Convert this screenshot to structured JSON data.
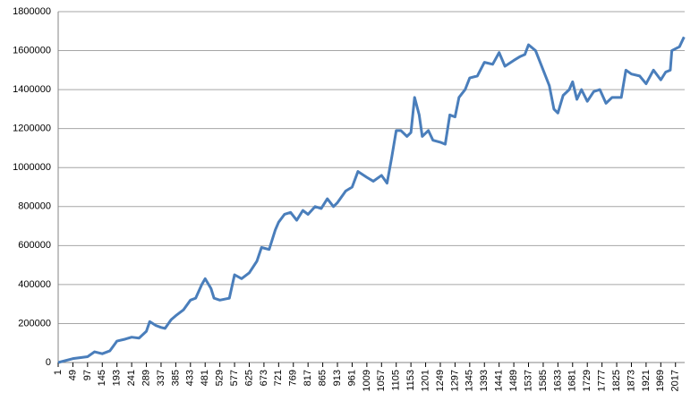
{
  "chart_data": {
    "type": "line",
    "x": [
      1,
      49,
      97,
      120,
      145,
      170,
      193,
      220,
      241,
      265,
      289,
      300,
      320,
      337,
      350,
      370,
      385,
      410,
      433,
      450,
      470,
      481,
      500,
      510,
      529,
      560,
      577,
      600,
      625,
      650,
      665,
      690,
      710,
      721,
      740,
      760,
      780,
      800,
      817,
      840,
      860,
      880,
      900,
      913,
      940,
      961,
      980,
      1009,
      1030,
      1057,
      1075,
      1090,
      1105,
      1120,
      1140,
      1153,
      1165,
      1180,
      1190,
      1210,
      1225,
      1249,
      1265,
      1280,
      1297,
      1310,
      1330,
      1345,
      1370,
      1393,
      1420,
      1441,
      1460,
      1489,
      1510,
      1525,
      1537,
      1560,
      1585,
      1605,
      1620,
      1633,
      1650,
      1670,
      1681,
      1695,
      1710,
      1729,
      1750,
      1770,
      1790,
      1810,
      1840,
      1855,
      1873,
      1900,
      1921,
      1945,
      1969,
      1985,
      2000,
      2005,
      2030,
      2045
    ],
    "series": [
      {
        "color": "#4a7ebb",
        "values": [
          0,
          20000,
          30000,
          55000,
          45000,
          60000,
          110000,
          120000,
          130000,
          125000,
          160000,
          210000,
          190000,
          180000,
          175000,
          220000,
          240000,
          270000,
          320000,
          330000,
          400000,
          430000,
          380000,
          330000,
          320000,
          330000,
          450000,
          430000,
          460000,
          520000,
          590000,
          580000,
          680000,
          720000,
          760000,
          770000,
          730000,
          780000,
          760000,
          800000,
          790000,
          840000,
          800000,
          820000,
          880000,
          900000,
          980000,
          950000,
          930000,
          960000,
          920000,
          1050000,
          1190000,
          1190000,
          1160000,
          1180000,
          1360000,
          1270000,
          1160000,
          1190000,
          1140000,
          1130000,
          1120000,
          1270000,
          1260000,
          1360000,
          1400000,
          1460000,
          1470000,
          1540000,
          1530000,
          1590000,
          1520000,
          1550000,
          1570000,
          1580000,
          1630000,
          1600000,
          1500000,
          1420000,
          1300000,
          1280000,
          1370000,
          1400000,
          1440000,
          1350000,
          1400000,
          1340000,
          1390000,
          1400000,
          1330000,
          1360000,
          1360000,
          1500000,
          1480000,
          1470000,
          1430000,
          1500000,
          1450000,
          1490000,
          1500000,
          1600000,
          1620000,
          1670000
        ]
      }
    ],
    "xlim": [
      1,
      2047
    ],
    "xticks": [
      1,
      49,
      97,
      145,
      193,
      241,
      289,
      337,
      385,
      433,
      481,
      529,
      577,
      625,
      673,
      721,
      769,
      817,
      865,
      913,
      961,
      1009,
      1057,
      1105,
      1153,
      1201,
      1249,
      1297,
      1345,
      1393,
      1441,
      1489,
      1537,
      1585,
      1633,
      1681,
      1729,
      1777,
      1825,
      1873,
      1921,
      1969,
      2017
    ],
    "ylim": [
      0,
      1800000
    ],
    "yticks": [
      0,
      200000,
      400000,
      600000,
      800000,
      1000000,
      1200000,
      1400000,
      1600000,
      1800000
    ],
    "grid": true
  }
}
